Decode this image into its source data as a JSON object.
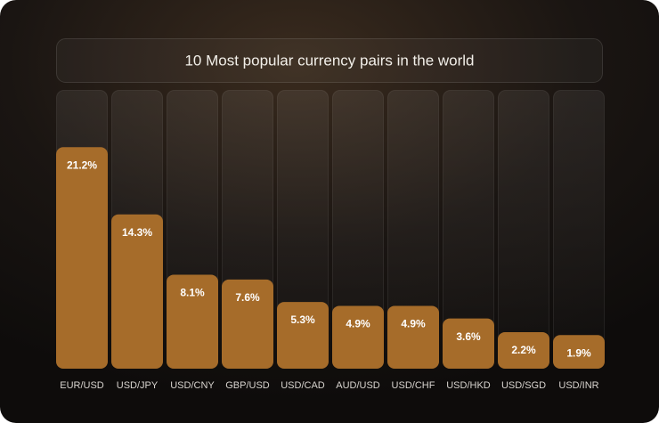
{
  "chart_data": {
    "type": "bar",
    "title": "10 Most popular currency pairs in the world",
    "categories": [
      "EUR/USD",
      "USD/JPY",
      "USD/CNY",
      "GBP/USD",
      "USD/CAD",
      "AUD/USD",
      "USD/CHF",
      "USD/HKD",
      "USD/SGD",
      "USD/INR"
    ],
    "values": [
      21.2,
      14.3,
      8.1,
      7.6,
      5.3,
      4.9,
      4.9,
      3.6,
      2.2,
      1.9
    ],
    "value_labels": [
      "21.2%",
      "14.3%",
      "8.1%",
      "7.6%",
      "5.3%",
      "4.9%",
      "4.9%",
      "3.6%",
      "2.2%",
      "1.9%"
    ],
    "color": "#a66c2a"
  }
}
